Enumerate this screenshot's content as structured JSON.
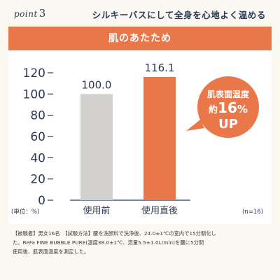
{
  "header": {
    "point_label": "point",
    "point_number": "3",
    "headline": "シルキーバスにして全身を心地よく温める"
  },
  "panel": {
    "title": "肌のあたため"
  },
  "badge": {
    "line1": "肌表面温度",
    "line2_prefix": "約",
    "line2_value": "16",
    "line2_suffix": "%",
    "line3": "UP",
    "color": "#e9774a"
  },
  "chart_data": {
    "type": "bar",
    "categories": [
      "使用前",
      "使用直後"
    ],
    "values": [
      100.0,
      116.1
    ],
    "value_labels": [
      "100.0",
      "116.1"
    ],
    "bar_colors": [
      "#d3d1cd",
      "#e9774a"
    ],
    "ylim": [
      0,
      120
    ],
    "yticks": [
      0,
      20,
      40,
      60,
      80,
      100,
      120
    ],
    "unit_label": "(単位：%)",
    "sample_label": "(n=16)",
    "grid": false
  },
  "footnote": {
    "lines": [
      "【被験者】男女16名　【試験方法】腰を洗顔料で洗浄後、24.0±1℃の室内で15分馴化し",
      "た。ReFa FINE BUBBLE PURE(温度38.0±1℃、流量5.5±1.0L/min)を腰に5分間",
      "使用後、肌表面温度を測定した。"
    ]
  }
}
